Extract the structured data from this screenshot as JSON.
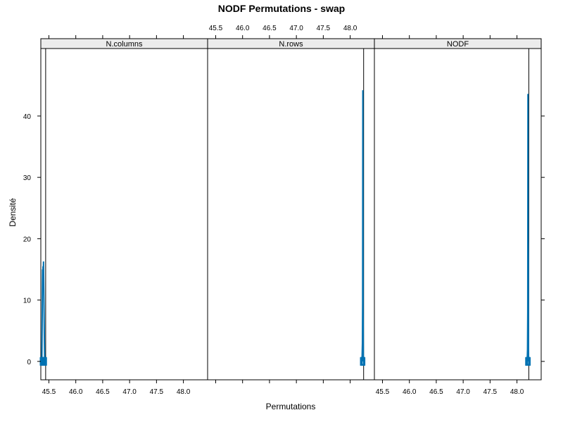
{
  "chart_data": {
    "type": "line",
    "title": "NODF Permutations - swap",
    "xlabel": "Permutations",
    "ylabel": "Densité",
    "x_ticks": [
      45.5,
      46.0,
      46.5,
      47.0,
      47.5,
      48.0
    ],
    "x_tick_labels": [
      "45.5",
      "46.0",
      "46.5",
      "47.0",
      "47.5",
      "48.0"
    ],
    "y_ticks": [
      0,
      10,
      20,
      30,
      40
    ],
    "y_tick_labels": [
      "0",
      "10",
      "20",
      "30",
      "40"
    ],
    "xlim": [
      45.35,
      48.45
    ],
    "ylim": [
      -3,
      51
    ],
    "grid": false,
    "series_color": "#0072B2",
    "panels": [
      {
        "name": "N.columns",
        "observed": 45.44,
        "density": [
          {
            "x": 45.37,
            "y": 0
          },
          {
            "x": 45.375,
            "y": 6
          },
          {
            "x": 45.38,
            "y": 13
          },
          {
            "x": 45.383,
            "y": 15
          },
          {
            "x": 45.386,
            "y": 12
          },
          {
            "x": 45.39,
            "y": 15.5
          },
          {
            "x": 45.395,
            "y": 13
          },
          {
            "x": 45.4,
            "y": 16.3
          },
          {
            "x": 45.405,
            "y": 12
          },
          {
            "x": 45.41,
            "y": 8
          },
          {
            "x": 45.415,
            "y": 4
          },
          {
            "x": 45.42,
            "y": 1
          },
          {
            "x": 45.425,
            "y": 0
          }
        ],
        "rug": [
          45.37,
          45.375,
          45.38,
          45.385,
          45.39,
          45.395,
          45.4,
          45.405,
          45.41,
          45.415,
          45.42,
          45.425
        ]
      },
      {
        "name": "N.rows",
        "observed": 48.25,
        "density": [
          {
            "x": 48.22,
            "y": 0
          },
          {
            "x": 48.228,
            "y": 3
          },
          {
            "x": 48.232,
            "y": 9.5
          },
          {
            "x": 48.236,
            "y": 44.2
          },
          {
            "x": 48.24,
            "y": 8
          },
          {
            "x": 48.245,
            "y": 0
          }
        ],
        "rug": [
          48.222,
          48.226,
          48.23,
          48.234,
          48.238,
          48.242
        ]
      },
      {
        "name": "NODF",
        "observed": 48.22,
        "density": [
          {
            "x": 48.19,
            "y": 0
          },
          {
            "x": 48.196,
            "y": 2
          },
          {
            "x": 48.2,
            "y": 8
          },
          {
            "x": 48.204,
            "y": 43.6
          },
          {
            "x": 48.207,
            "y": 20
          },
          {
            "x": 48.21,
            "y": 16.5
          },
          {
            "x": 48.213,
            "y": 5
          },
          {
            "x": 48.216,
            "y": 0
          }
        ],
        "rug": [
          48.192,
          48.196,
          48.2,
          48.204,
          48.208,
          48.212,
          48.215
        ]
      }
    ]
  }
}
